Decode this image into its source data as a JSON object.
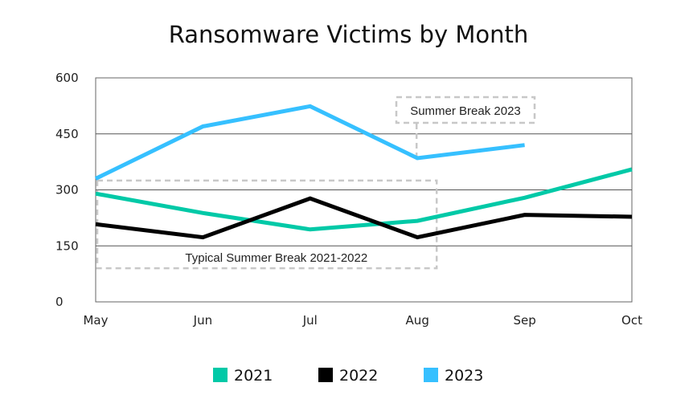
{
  "chart_data": {
    "type": "line",
    "title": "Ransomware Victims by Month",
    "categories": [
      "May",
      "Jun",
      "Jul",
      "Aug",
      "Sep",
      "Oct"
    ],
    "ylim": [
      0,
      600
    ],
    "yticks": [
      "0",
      "150",
      "300",
      "450",
      "600"
    ],
    "grid": true,
    "legend_placement": "bottom",
    "series": [
      {
        "name": "2021",
        "color": "#00C9A7",
        "values": [
          290,
          238,
          194,
          217,
          279,
          355
        ]
      },
      {
        "name": "2022",
        "color": "#000000",
        "values": [
          208,
          173,
          277,
          173,
          233,
          228
        ]
      },
      {
        "name": "2023",
        "color": "#36C0FF",
        "values": [
          330,
          470,
          524,
          385,
          420,
          null
        ]
      }
    ],
    "annotations": [
      {
        "text": "Typical Summer Break 2021-2022",
        "from": "May",
        "to": "Aug",
        "ymin": 90,
        "ymax": 325
      },
      {
        "text": "Summer Break 2023",
        "points_to": "Aug"
      }
    ]
  }
}
